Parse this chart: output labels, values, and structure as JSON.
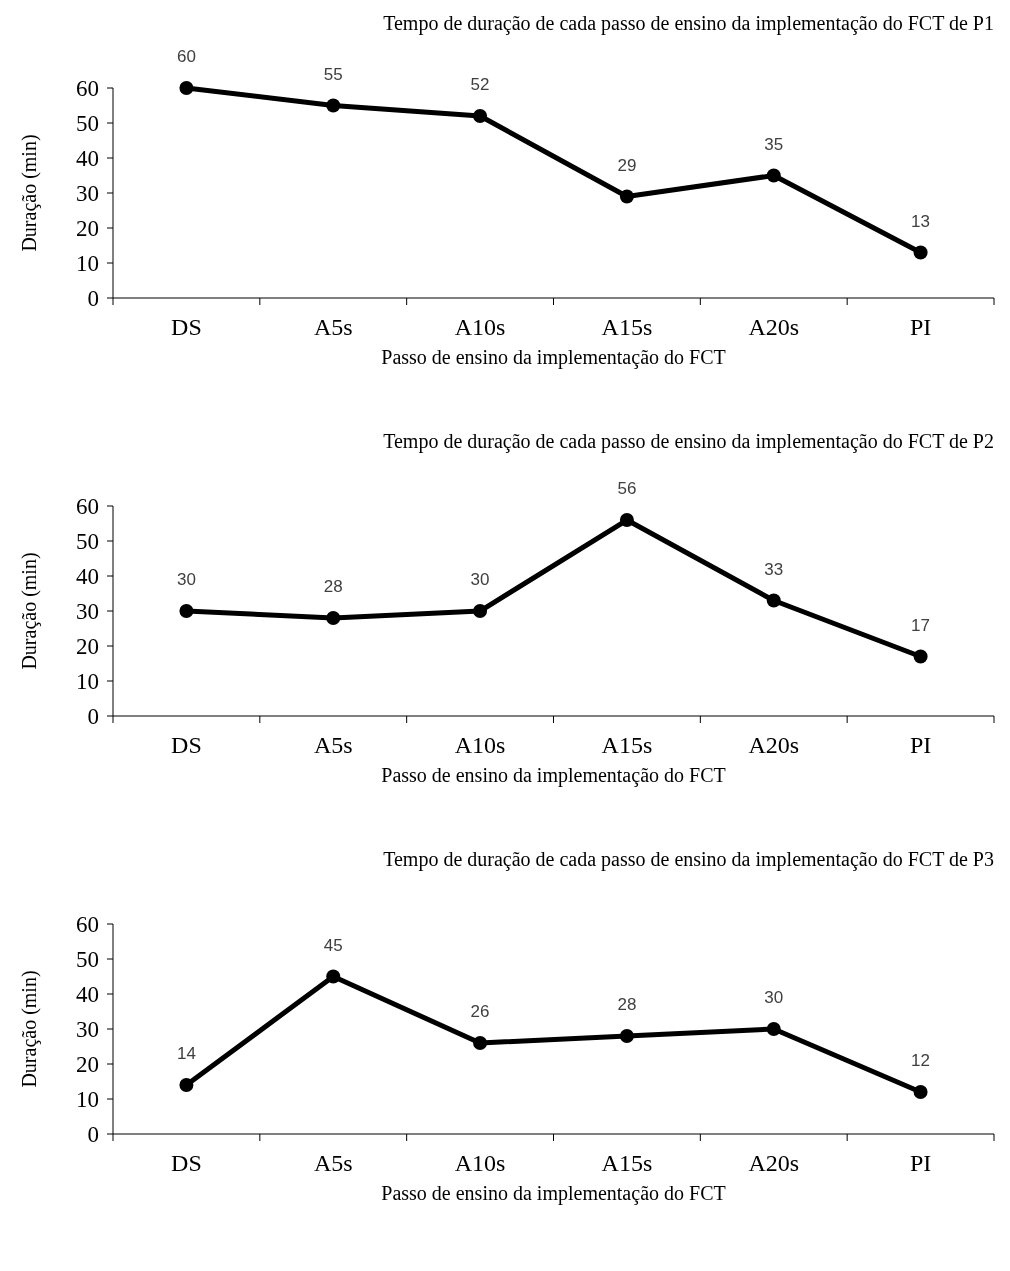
{
  "chart_data": [
    {
      "type": "line",
      "title": "Tempo de duração de cada passo de ensino da implementação do FCT de P1",
      "xlabel": "Passo de ensino da implementação do FCT",
      "ylabel": "Duração (min)",
      "categories": [
        "DS",
        "A5s",
        "A10s",
        "A15s",
        "A20s",
        "PI"
      ],
      "series": [
        {
          "color": "#000000",
          "values": [
            60,
            55,
            52,
            29,
            35,
            13
          ]
        }
      ],
      "ylim": [
        0,
        60
      ],
      "yticks": [
        0,
        10,
        20,
        30,
        40,
        50,
        60
      ],
      "data_labels": true,
      "marker": "circle",
      "line_style": "solid"
    },
    {
      "type": "line",
      "title": "Tempo de duração de cada passo de ensino da implementação do FCT de P2",
      "xlabel": "Passo de ensino da implementação do FCT",
      "ylabel": "Duração (min)",
      "categories": [
        "DS",
        "A5s",
        "A10s",
        "A15s",
        "A20s",
        "PI"
      ],
      "series": [
        {
          "color": "#000000",
          "values": [
            30,
            28,
            30,
            56,
            33,
            17
          ]
        }
      ],
      "ylim": [
        0,
        60
      ],
      "yticks": [
        0,
        10,
        20,
        30,
        40,
        50,
        60
      ],
      "data_labels": true,
      "marker": "circle",
      "line_style": "solid"
    },
    {
      "type": "line",
      "title": "Tempo de duração de cada passo de ensino da implementação do FCT de P3",
      "xlabel": "Passo de ensino da implementação do FCT",
      "ylabel": "Duração (min)",
      "categories": [
        "DS",
        "A5s",
        "A10s",
        "A15s",
        "A20s",
        "PI"
      ],
      "series": [
        {
          "color": "#000000",
          "values": [
            14,
            45,
            26,
            28,
            30,
            12
          ]
        }
      ],
      "ylim": [
        0,
        60
      ],
      "yticks": [
        0,
        10,
        20,
        30,
        40,
        50,
        60
      ],
      "data_labels": true,
      "marker": "circle",
      "line_style": "solid"
    }
  ]
}
